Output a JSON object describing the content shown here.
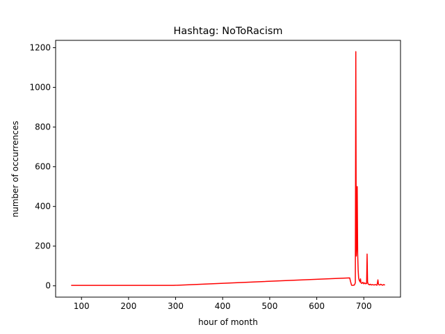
{
  "chart_data": {
    "type": "line",
    "title": "Hashtag: NoToRacism",
    "xlabel": "hour of month",
    "ylabel": "number of occurrences",
    "xlim": [
      45,
      778
    ],
    "ylim": [
      -57,
      1237
    ],
    "xticks": [
      100,
      200,
      300,
      400,
      500,
      600,
      700
    ],
    "yticks": [
      0,
      200,
      400,
      600,
      800,
      1000,
      1200
    ],
    "grid": false,
    "series": [
      {
        "color": "#ff0000",
        "x": [
          78,
          295,
          670,
          672,
          674,
          676,
          678,
          680,
          682,
          683,
          684,
          685,
          686,
          687,
          688,
          689,
          690,
          691,
          692,
          693,
          694,
          696,
          698,
          700,
          702,
          704,
          706,
          707,
          708,
          709,
          710,
          712,
          714,
          716,
          718,
          720,
          722,
          724,
          726,
          728,
          729,
          730,
          731,
          732,
          734,
          736,
          738,
          740,
          742,
          745
        ],
        "y": [
          2,
          2,
          40,
          20,
          3,
          2,
          3,
          4,
          15,
          1180,
          150,
          200,
          500,
          160,
          80,
          40,
          30,
          25,
          20,
          35,
          15,
          12,
          18,
          10,
          15,
          10,
          12,
          160,
          20,
          10,
          8,
          5,
          8,
          4,
          6,
          5,
          4,
          6,
          5,
          3,
          15,
          30,
          10,
          5,
          4,
          8,
          5,
          3,
          6,
          4
        ]
      }
    ]
  }
}
